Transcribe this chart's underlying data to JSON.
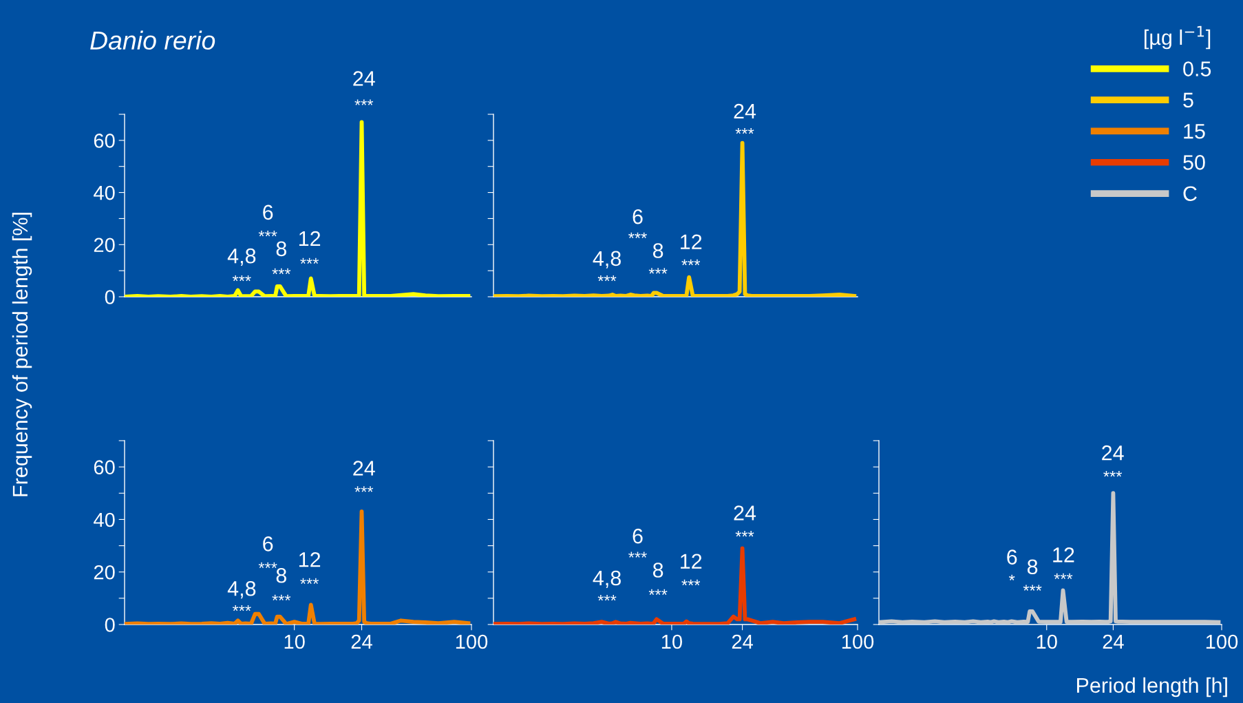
{
  "chart_data": [
    {
      "type": "line",
      "title": "Danio rerio",
      "ylabel": "Frequency of period length [%]",
      "legend_title": "[µg l$^{−1}$]",
      "legend": "top right",
      "log": "x",
      "xlim": [
        1.1,
        100
      ],
      "ylim": [
        0,
        70
      ],
      "yticks": [
        0,
        {
          "value": 10,
          "label": null
        },
        20,
        {
          "value": 30,
          "label": null
        },
        40,
        {
          "value": 50,
          "label": null
        },
        60,
        {
          "value": 70,
          "label": null
        }
      ],
      "xticks": [
        10,
        24,
        100
      ],
      "tick_labels": "y",
      "grid": false,
      "x": [
        1.1,
        1.3,
        1.5,
        1.7,
        2.0,
        2.3,
        2.6,
        3.0,
        3.4,
        3.8,
        4.2,
        4.6,
        4.8,
        5.0,
        5.3,
        5.7,
        6.0,
        6.3,
        6.8,
        7.4,
        7.8,
        8.0,
        8.3,
        9.0,
        10,
        11,
        11.6,
        12,
        12.4,
        13,
        14,
        16,
        18,
        20,
        21.5,
        22.5,
        23.2,
        24,
        24.8,
        25.6,
        27,
        30,
        35,
        40,
        47,
        55,
        65,
        80,
        96
      ],
      "series": [
        {
          "name": "0.5",
          "color": "#ffff00",
          "values": [
            0,
            0.3,
            0,
            0.2,
            0,
            0.3,
            0,
            0.2,
            0,
            0.3,
            0,
            0.3,
            2.5,
            0.3,
            0.2,
            0.3,
            2,
            2,
            0.2,
            0.3,
            0.2,
            4,
            4,
            0.2,
            0.3,
            0.3,
            0.3,
            0.3,
            7,
            0.3,
            0.3,
            0.2,
            0.3,
            0.3,
            0.3,
            0.3,
            0.3,
            67,
            0.3,
            0.3,
            0.3,
            0.3,
            0.3,
            0.6,
            1.0,
            0.5,
            0.2,
            0.3,
            0.3
          ]
        }
      ],
      "annotations": [
        "4,8",
        "***",
        "6",
        "***",
        "8",
        "***",
        "12",
        "***",
        "24",
        "***"
      ]
    },
    {
      "type": "line",
      "log": "x",
      "xlim": [
        1.1,
        100
      ],
      "ylim": [
        0,
        70
      ],
      "yticks": [
        0,
        10,
        20,
        30,
        40,
        50,
        60,
        70
      ],
      "xticks": [
        10,
        24,
        100
      ],
      "tick_labels": false,
      "grid": false,
      "x": [
        1.1,
        1.3,
        1.5,
        1.7,
        2.0,
        2.3,
        2.6,
        3.0,
        3.4,
        3.8,
        4.2,
        4.6,
        4.8,
        5.0,
        5.3,
        5.7,
        6.0,
        6.3,
        6.8,
        7.4,
        7.8,
        8.0,
        8.3,
        9.0,
        10,
        11,
        11.6,
        12,
        12.4,
        13,
        14,
        16,
        18,
        20,
        21.5,
        22.5,
        23.2,
        24,
        24.8,
        25.6,
        27,
        30,
        35,
        40,
        47,
        55,
        65,
        80,
        96
      ],
      "series": [
        {
          "name": "5",
          "color": "#ffcc00",
          "values": [
            0.2,
            0.3,
            0.2,
            0.4,
            0.2,
            0.3,
            0.2,
            0.4,
            0.3,
            0.5,
            0.3,
            0.4,
            0.8,
            0.3,
            0.4,
            0.3,
            0.8,
            0.5,
            0.3,
            0.4,
            0.3,
            1.5,
            1.5,
            0.3,
            0.3,
            0.3,
            0.3,
            0.3,
            7.5,
            0.3,
            0.3,
            0.3,
            0.3,
            0.3,
            0.5,
            1.0,
            2,
            59,
            1,
            0.5,
            0.3,
            0.3,
            0.3,
            0.3,
            0.3,
            0.3,
            0.5,
            0.8,
            0.3
          ]
        }
      ],
      "annotations": [
        "4,8",
        "***",
        "6",
        "***",
        "8",
        "***",
        "12",
        "***",
        "24",
        "***"
      ]
    },
    {
      "type": "line",
      "log": "x",
      "xlim": [
        1.1,
        100
      ],
      "ylim": [
        0,
        70
      ],
      "yticks": [
        0,
        {
          "value": 10,
          "label": null
        },
        20,
        {
          "value": 30,
          "label": null
        },
        40,
        {
          "value": 50,
          "label": null
        },
        60,
        {
          "value": 70,
          "label": null
        }
      ],
      "xticks": [
        10,
        24,
        100
      ],
      "grid": false,
      "x": [
        1.1,
        1.3,
        1.5,
        1.7,
        2.0,
        2.3,
        2.6,
        3.0,
        3.4,
        3.8,
        4.2,
        4.6,
        4.8,
        5.0,
        5.3,
        5.7,
        6.0,
        6.3,
        6.8,
        7.4,
        7.8,
        8.0,
        8.3,
        9.0,
        10,
        11,
        11.6,
        12,
        12.4,
        13,
        14,
        16,
        18,
        20,
        21.5,
        22.5,
        23.2,
        24,
        24.8,
        25.6,
        27,
        30,
        35,
        40,
        47,
        55,
        65,
        80,
        96
      ],
      "series": [
        {
          "name": "15",
          "color": "#f08000",
          "values": [
            0.2,
            0.4,
            0.2,
            0.3,
            0.2,
            0.4,
            0.2,
            0.3,
            0.5,
            0.3,
            0.6,
            0.3,
            1.5,
            0.3,
            0.4,
            0.3,
            4,
            4,
            0.3,
            0.4,
            0.3,
            3,
            3,
            0.2,
            1,
            0.3,
            0.3,
            0.3,
            7.5,
            0.3,
            0.2,
            0.3,
            0.3,
            0.3,
            0.3,
            0.5,
            1.5,
            43,
            1,
            0.5,
            0.3,
            0.3,
            0.3,
            1.5,
            1,
            0.8,
            0.5,
            1,
            0.5
          ]
        }
      ],
      "annotations": [
        "4,8",
        "***",
        "6",
        "***",
        "8",
        "***",
        "12",
        "***",
        "24",
        "***"
      ]
    },
    {
      "type": "line",
      "log": "x",
      "xlim": [
        1.1,
        100
      ],
      "ylim": [
        0,
        70
      ],
      "yticks": [
        0,
        10,
        20,
        30,
        40,
        50,
        60,
        70
      ],
      "xticks": [
        10,
        24,
        100
      ],
      "tick_labels": "x",
      "grid": false,
      "x": [
        1.1,
        1.3,
        1.5,
        1.7,
        2.0,
        2.3,
        2.6,
        3.0,
        3.4,
        3.8,
        4.2,
        4.6,
        4.8,
        5.0,
        5.3,
        5.7,
        6.0,
        6.3,
        6.8,
        7.4,
        7.8,
        8.0,
        8.3,
        9.0,
        10,
        11,
        11.6,
        12,
        12.4,
        13,
        14,
        16,
        18,
        20,
        21.5,
        22.5,
        23.2,
        24,
        24.8,
        25.6,
        27,
        30,
        35,
        40,
        47,
        55,
        65,
        80,
        96
      ],
      "series": [
        {
          "name": "50",
          "color": "#e83c00",
          "values": [
            0.2,
            0.3,
            0.2,
            0.4,
            0.2,
            0.3,
            0.2,
            0.4,
            0.3,
            0.5,
            1,
            0.3,
            0.5,
            1,
            0.4,
            0.3,
            0.6,
            0.5,
            0.3,
            0.4,
            0.3,
            0.5,
            2,
            0.3,
            0.3,
            0.3,
            0.3,
            1.2,
            0.5,
            0.3,
            0.2,
            0.2,
            0.2,
            0.5,
            3,
            2,
            2,
            29,
            2,
            2,
            1.5,
            0.5,
            1,
            0.5,
            0.8,
            1,
            1,
            0.5,
            2
          ]
        }
      ],
      "annotations": [
        "4,8",
        "***",
        "6",
        "***",
        "8",
        "***",
        "12",
        "***",
        "24",
        "***"
      ]
    },
    {
      "type": "line",
      "xlabel": "Period length [h]",
      "log": "x",
      "xlim": [
        1.1,
        100
      ],
      "ylim": [
        0,
        70
      ],
      "yticks": [
        0,
        10,
        20,
        30,
        40,
        50,
        60,
        70
      ],
      "xticks": [
        10,
        24,
        100
      ],
      "tick_labels": "x",
      "grid": false,
      "x": [
        1.1,
        1.3,
        1.5,
        1.7,
        2.0,
        2.3,
        2.6,
        3.0,
        3.4,
        3.8,
        4.2,
        4.6,
        4.8,
        5.0,
        5.3,
        5.7,
        6.0,
        6.3,
        6.8,
        7.4,
        7.8,
        8.0,
        8.3,
        9.0,
        10,
        11,
        11.6,
        12,
        12.4,
        13,
        14,
        16,
        18,
        20,
        21.5,
        22.5,
        23.2,
        24,
        24.8,
        25.6,
        27,
        30,
        35,
        40,
        47,
        55,
        65,
        80,
        96
      ],
      "series": [
        {
          "name": "C",
          "color": "#c8c8c8",
          "values": [
            0.9,
            1.2,
            0.9,
            1.1,
            0.9,
            1.2,
            0.9,
            1.1,
            0.9,
            1.2,
            0.9,
            1.1,
            0.9,
            1.2,
            0.9,
            1.1,
            0.9,
            1.2,
            0.9,
            1.1,
            1,
            5,
            5,
            1.1,
            1,
            1,
            1,
            1,
            13,
            1,
            1,
            1.1,
            1,
            1.1,
            1,
            1,
            1.2,
            50,
            1.2,
            1.1,
            1.1,
            1,
            1,
            1,
            1,
            1,
            1,
            1,
            0.9
          ]
        }
      ],
      "annotations": [
        "6",
        "*",
        "8",
        "***",
        "12",
        "***",
        "24",
        "***"
      ]
    }
  ]
}
